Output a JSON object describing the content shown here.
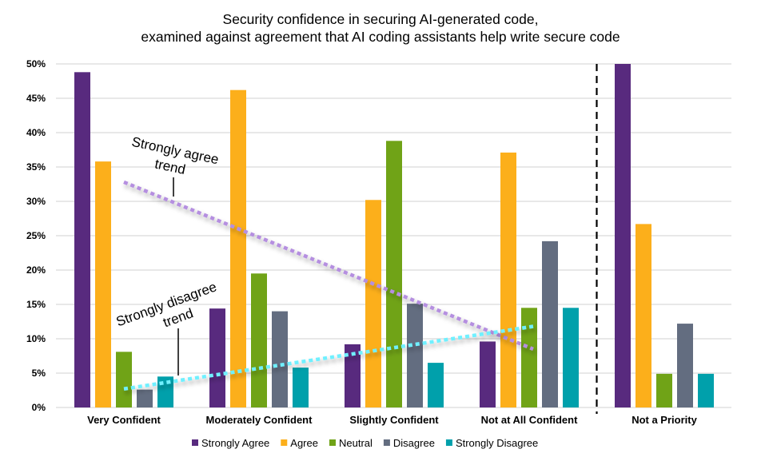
{
  "chart_data": {
    "type": "bar",
    "title": "Security confidence in securing AI-generated code,",
    "subtitle": "examined against agreement that AI coding assistants help write secure code",
    "categories": [
      "Very Confident",
      "Moderately Confident",
      "Slightly Confident",
      "Not at All Confident",
      "Not a Priority"
    ],
    "series": [
      {
        "name": "Strongly Agree",
        "color": "#582a7e",
        "values": [
          48.8,
          14.4,
          9.2,
          9.6,
          50.0
        ]
      },
      {
        "name": "Agree",
        "color": "#fcaf1b",
        "values": [
          35.8,
          46.2,
          30.2,
          37.1,
          26.7
        ]
      },
      {
        "name": "Neutral",
        "color": "#70a317",
        "values": [
          8.1,
          19.5,
          38.8,
          14.5,
          4.9
        ]
      },
      {
        "name": "Disagree",
        "color": "#636d80",
        "values": [
          2.6,
          14.0,
          15.1,
          24.2,
          12.2
        ]
      },
      {
        "name": "Strongly Disagree",
        "color": "#00a0ab",
        "values": [
          4.5,
          5.8,
          6.5,
          14.5,
          4.9
        ]
      }
    ],
    "ylim": [
      0,
      50
    ],
    "yticks": [
      "0%",
      "5%",
      "10%",
      "15%",
      "20%",
      "25%",
      "30%",
      "35%",
      "40%",
      "45%",
      "50%"
    ],
    "grid": true,
    "legend_position": "bottom",
    "separator_after_category": "Not at All Confident",
    "trendlines": [
      {
        "label_line1": "Strongly agree",
        "label_line2": "trend",
        "color": "#b58fe0",
        "from_category": "Very Confident",
        "to_category": "Not at All Confident",
        "start": 32.8,
        "end": 8.5
      },
      {
        "label_line1": "Strongly disagree",
        "label_line2": "trend",
        "color": "#6ff0ff",
        "from_category": "Very Confident",
        "to_category": "Not at All Confident",
        "start": 2.7,
        "end": 11.8
      }
    ]
  }
}
